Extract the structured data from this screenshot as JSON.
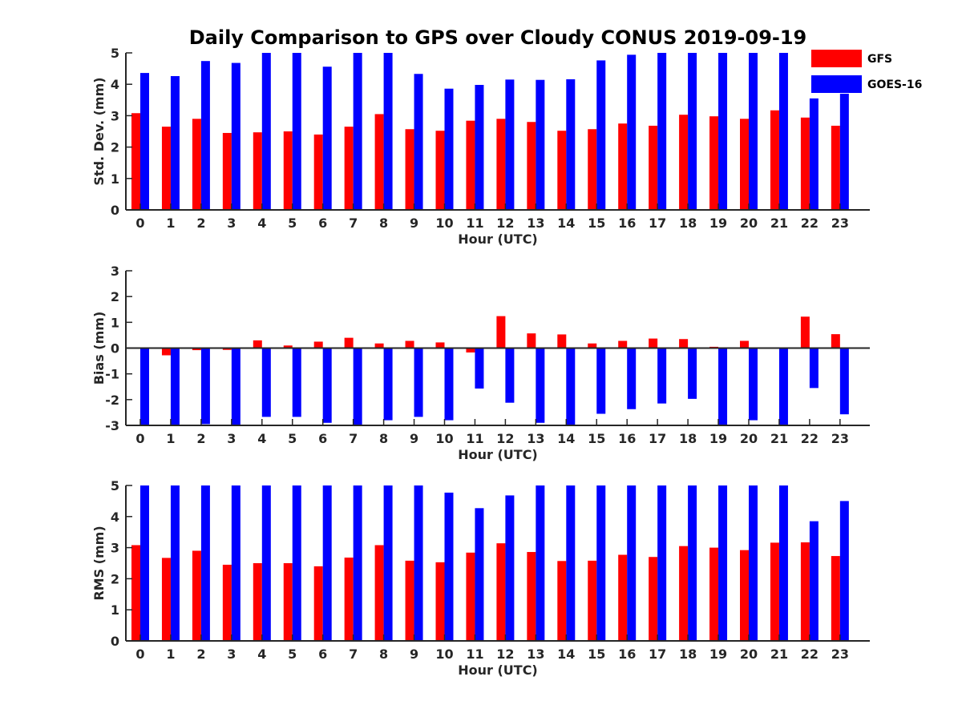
{
  "chart_data": {
    "title": "Daily Comparison to GPS over Cloudy CONUS 2019-09-19",
    "type": "bar",
    "categories": [
      "0",
      "1",
      "2",
      "3",
      "4",
      "5",
      "6",
      "7",
      "8",
      "9",
      "10",
      "11",
      "12",
      "13",
      "14",
      "15",
      "16",
      "17",
      "18",
      "19",
      "20",
      "21",
      "22",
      "23"
    ],
    "legend": {
      "placement": "top-right",
      "entries": [
        {
          "name": "GFS",
          "color": "#ff0000"
        },
        {
          "name": "GOES-16",
          "color": "#0000ff"
        }
      ]
    },
    "panels": [
      {
        "ylabel": "Std. Dev. (mm)",
        "xlabel": "Hour (UTC)",
        "ylim": [
          0,
          5
        ],
        "yticks": [
          "0",
          "1",
          "2",
          "3",
          "4",
          "5"
        ],
        "series": [
          {
            "name": "GFS",
            "color": "#ff0000",
            "values": [
              3.08,
              2.65,
              2.9,
              2.45,
              2.47,
              2.5,
              2.4,
              2.65,
              3.05,
              2.57,
              2.52,
              2.84,
              2.9,
              2.8,
              2.52,
              2.57,
              2.75,
              2.68,
              3.03,
              2.98,
              2.9,
              3.17,
              2.94,
              2.68
            ]
          },
          {
            "name": "GOES-16",
            "color": "#0000ff",
            "values": [
              4.36,
              4.26,
              4.74,
              4.68,
              5.0,
              5.0,
              4.56,
              5.0,
              5.0,
              4.33,
              3.86,
              3.98,
              4.15,
              4.14,
              4.16,
              4.76,
              4.94,
              5.0,
              5.0,
              5.0,
              5.0,
              5.0,
              3.55,
              3.7
            ]
          }
        ]
      },
      {
        "ylabel": "Bias (mm)",
        "xlabel": "Hour (UTC)",
        "ylim": [
          -3,
          3
        ],
        "yticks": [
          "-3",
          "-2",
          "-1",
          "0",
          "1",
          "2",
          "3"
        ],
        "series": [
          {
            "name": "GFS",
            "color": "#ff0000",
            "values": [
              0.0,
              -0.28,
              -0.08,
              -0.07,
              0.3,
              0.1,
              0.25,
              0.4,
              0.18,
              0.28,
              0.22,
              -0.17,
              1.24,
              0.57,
              0.53,
              0.18,
              0.28,
              0.37,
              0.35,
              0.05,
              0.28,
              0.0,
              1.22,
              0.54
            ]
          },
          {
            "name": "GOES-16",
            "color": "#0000ff",
            "values": [
              -3.0,
              -3.0,
              -2.95,
              -3.0,
              -2.67,
              -2.67,
              -2.9,
              -3.0,
              -2.8,
              -2.67,
              -2.8,
              -1.57,
              -2.12,
              -2.9,
              -3.0,
              -2.55,
              -2.37,
              -2.15,
              -1.97,
              -3.0,
              -2.8,
              -3.0,
              -1.55,
              -2.57
            ]
          }
        ]
      },
      {
        "ylabel": "RMS (mm)",
        "xlabel": "Hour (UTC)",
        "ylim": [
          0,
          5
        ],
        "yticks": [
          "0",
          "1",
          "2",
          "3",
          "4",
          "5"
        ],
        "series": [
          {
            "name": "GFS",
            "color": "#ff0000",
            "values": [
              3.08,
              2.67,
              2.9,
              2.45,
              2.5,
              2.5,
              2.4,
              2.68,
              3.08,
              2.58,
              2.53,
              2.84,
              3.14,
              2.86,
              2.57,
              2.58,
              2.77,
              2.7,
              3.05,
              3.0,
              2.92,
              3.16,
              3.17,
              2.73
            ]
          },
          {
            "name": "GOES-16",
            "color": "#0000ff",
            "values": [
              5.0,
              5.0,
              5.0,
              5.0,
              5.0,
              5.0,
              5.0,
              5.0,
              5.0,
              5.0,
              4.77,
              4.27,
              4.68,
              5.0,
              5.0,
              5.0,
              5.0,
              5.0,
              5.0,
              5.0,
              5.0,
              5.0,
              3.85,
              4.5
            ]
          }
        ]
      }
    ]
  }
}
